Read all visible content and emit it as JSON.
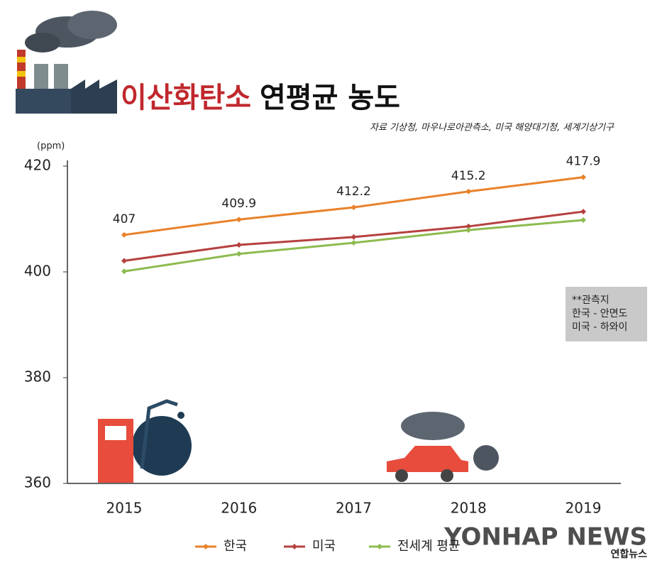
{
  "chart_data": {
    "type": "line",
    "title_highlight": "이산화탄소",
    "title": "연평균 농도",
    "source": "자료 기상청, 마우나로아관측소, 미국 해양대기청, 세계기상기구",
    "y_label": "(ppm)",
    "categories": [
      "2015",
      "2016",
      "2017",
      "2018",
      "2019"
    ],
    "series": [
      {
        "name": "한국",
        "color": "#e8822a",
        "values": [
          407,
          409.9,
          412.2,
          415.2,
          417.9
        ],
        "data_labels": true
      },
      {
        "name": "미국",
        "color": "#b5413f",
        "values": [
          402.1,
          405.1,
          406.6,
          408.6,
          411.4
        ]
      },
      {
        "name": "전세계 평균",
        "color": "#8dbb4f",
        "values": [
          400.1,
          403.4,
          405.5,
          407.9,
          409.8
        ]
      }
    ],
    "ylim": [
      360,
      420
    ],
    "yticks": [
      360,
      380,
      400,
      420
    ],
    "grid": false,
    "note": [
      "**관측지",
      "한국 - 안면도",
      "미국 - 하와이"
    ],
    "watermark": "YONHAP NEWS",
    "watermark_sub": "연합뉴스"
  }
}
